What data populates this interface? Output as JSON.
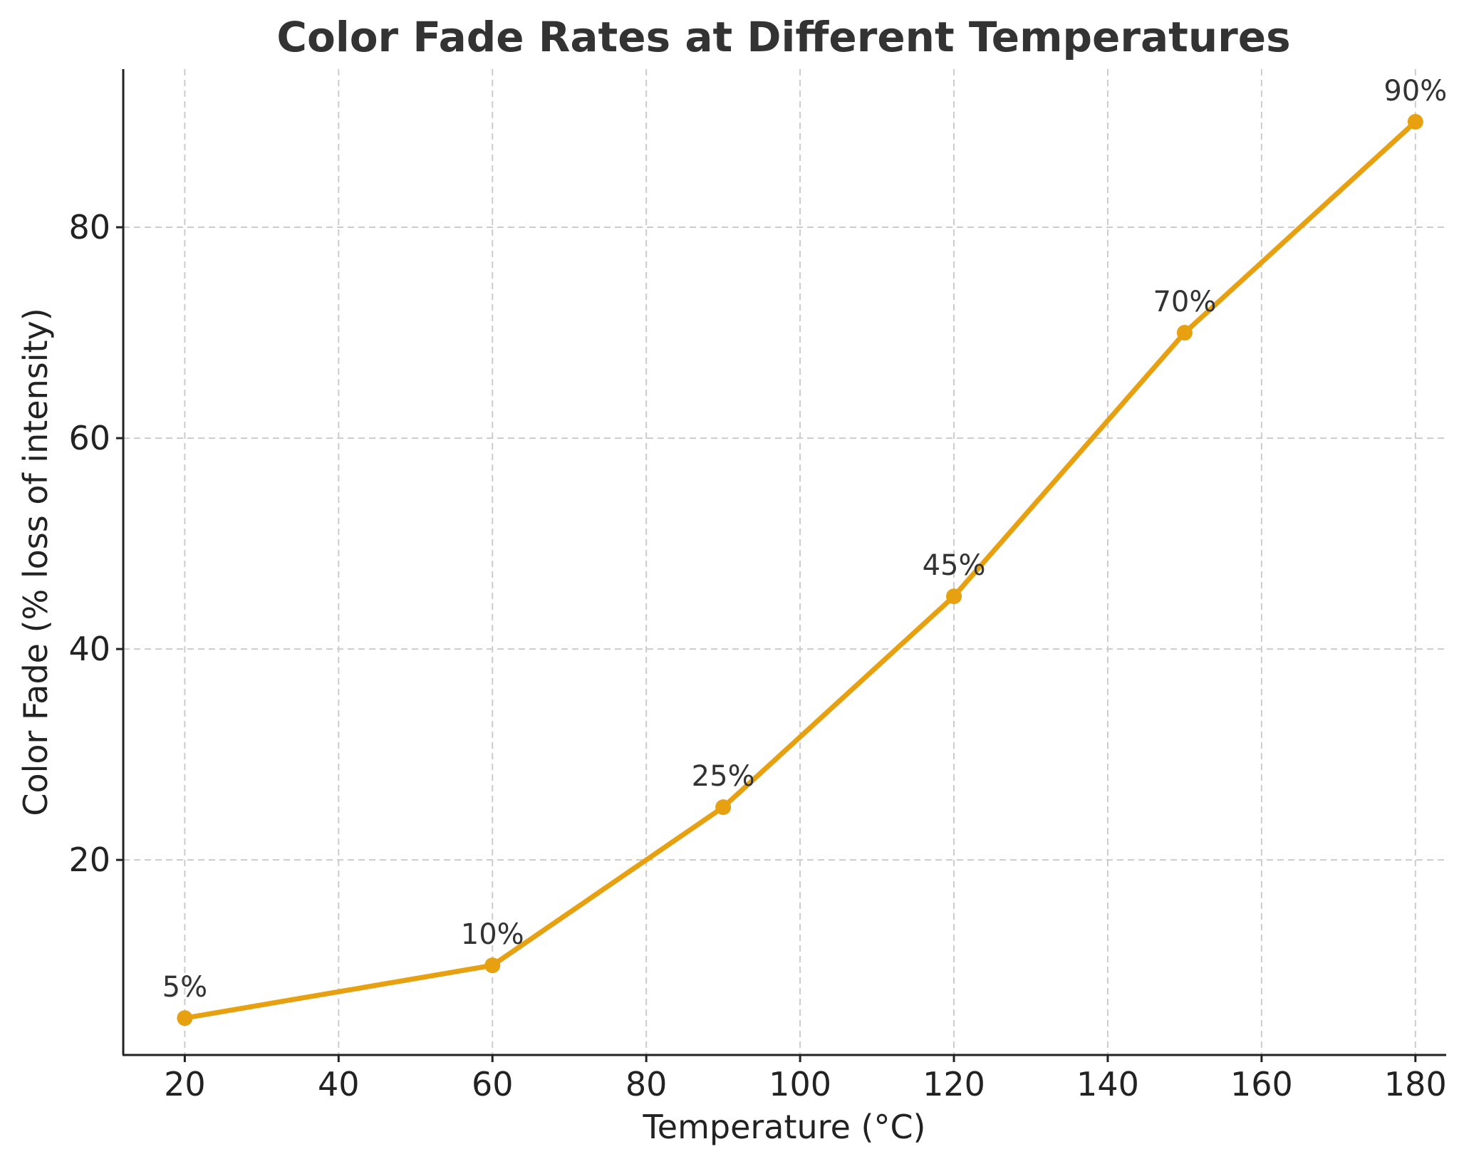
{
  "chart_data": {
    "type": "line",
    "title": "Color Fade Rates at Different Temperatures",
    "xlabel": "Temperature (°C)",
    "ylabel": "Color Fade (% loss of intensity)",
    "xlim": [
      12,
      184
    ],
    "ylim": [
      1.5,
      95
    ],
    "xticks": [
      20,
      40,
      60,
      80,
      100,
      120,
      140,
      160,
      180
    ],
    "yticks": [
      20,
      40,
      60,
      80
    ],
    "grid": true,
    "grid_style": "dashed",
    "series": [
      {
        "x": [
          20,
          60,
          90,
          120,
          150,
          180
        ],
        "y": [
          5,
          10,
          25,
          45,
          70,
          90
        ],
        "labels": [
          "5%",
          "10%",
          "25%",
          "45%",
          "70%",
          "90%"
        ],
        "color": "#E6A010",
        "marker": "circle"
      }
    ]
  }
}
